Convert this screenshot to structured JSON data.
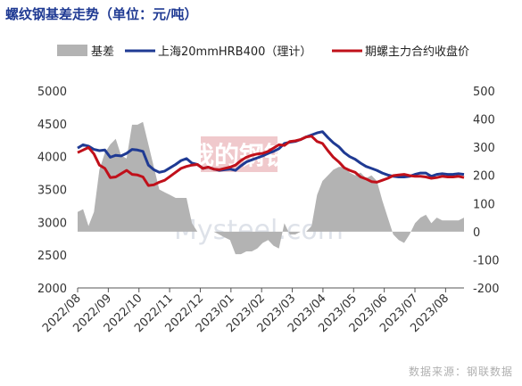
{
  "title": "螺纹钢基差走势（单位：元/吨）",
  "source": "数据来源：钢联数据",
  "watermark": {
    "logo_text": "我的钢铁",
    "site_text": "Mysteel.com"
  },
  "colors": {
    "basis": "#b3b3b3",
    "spot": "#1f3a93",
    "futures": "#c0101a",
    "axis": "#555555",
    "title": "#1f3a93"
  },
  "chart_data": {
    "type": "line",
    "x_tick_labels": [
      "2022/08",
      "2022/09",
      "2022/10",
      "2022/11",
      "2022/12",
      "2023/01",
      "2023/02",
      "2023/03",
      "2023/04",
      "2023/05",
      "2023/06",
      "2023/07",
      "2023/08"
    ],
    "x_range": [
      "2022/08",
      "2023/08"
    ],
    "y_left": {
      "min": 2000,
      "max": 5000,
      "step": 500,
      "ticks": [
        "5000",
        "4500",
        "4000",
        "3500",
        "3000",
        "2500",
        "2000"
      ]
    },
    "y_right": {
      "min": -200,
      "max": 500,
      "step": 100,
      "ticks": [
        "500",
        "400",
        "300",
        "200",
        "100",
        "0",
        "-100",
        "-200"
      ]
    },
    "legend": {
      "position": "top",
      "entries": [
        "基差",
        "上海20mmHRB400（理计）",
        "期螺主力合约收盘价"
      ]
    },
    "series": [
      {
        "name": "上海20mmHRB400（理计）",
        "kind": "line",
        "axis": "left",
        "values": [
          4130,
          4180,
          4160,
          4110,
          4090,
          4100,
          3990,
          4020,
          4010,
          4050,
          4110,
          4100,
          4080,
          3870,
          3800,
          3760,
          3780,
          3830,
          3880,
          3940,
          3970,
          3900,
          3880,
          3820,
          3840,
          3810,
          3790,
          3800,
          3810,
          3790,
          3860,
          3920,
          3950,
          3980,
          4010,
          4050,
          4080,
          4120,
          4200,
          4220,
          4230,
          4260,
          4300,
          4330,
          4360,
          4380,
          4290,
          4210,
          4150,
          4060,
          4000,
          3960,
          3900,
          3850,
          3820,
          3790,
          3750,
          3720,
          3700,
          3690,
          3690,
          3700,
          3730,
          3750,
          3750,
          3700,
          3730,
          3740,
          3730,
          3730,
          3740,
          3730
        ]
      },
      {
        "name": "期螺主力合约收盘价",
        "kind": "line",
        "axis": "left",
        "values": [
          4060,
          4100,
          4140,
          4040,
          3870,
          3820,
          3680,
          3690,
          3740,
          3790,
          3730,
          3720,
          3690,
          3560,
          3570,
          3610,
          3640,
          3700,
          3760,
          3820,
          3850,
          3870,
          3880,
          3820,
          3840,
          3810,
          3800,
          3820,
          3840,
          3870,
          3940,
          3990,
          4020,
          4040,
          4050,
          4080,
          4130,
          4180,
          4170,
          4230,
          4240,
          4260,
          4300,
          4310,
          4230,
          4200,
          4090,
          3990,
          3920,
          3830,
          3790,
          3760,
          3690,
          3660,
          3620,
          3610,
          3640,
          3670,
          3710,
          3720,
          3730,
          3710,
          3700,
          3700,
          3690,
          3670,
          3680,
          3700,
          3690,
          3690,
          3700,
          3680
        ]
      },
      {
        "name": "基差",
        "kind": "area",
        "axis": "right",
        "values": [
          70,
          80,
          20,
          70,
          220,
          280,
          310,
          330,
          270,
          260,
          380,
          380,
          390,
          310,
          230,
          150,
          140,
          130,
          120,
          120,
          120,
          30,
          0,
          0,
          0,
          0,
          -10,
          -20,
          -30,
          -80,
          -80,
          -70,
          -70,
          -60,
          -40,
          -30,
          -50,
          -60,
          30,
          -10,
          -10,
          0,
          0,
          20,
          130,
          180,
          200,
          220,
          230,
          230,
          210,
          200,
          210,
          190,
          200,
          180,
          110,
          50,
          -10,
          -30,
          -40,
          -10,
          30,
          50,
          60,
          30,
          50,
          40,
          40,
          40,
          40,
          50
        ]
      }
    ]
  }
}
